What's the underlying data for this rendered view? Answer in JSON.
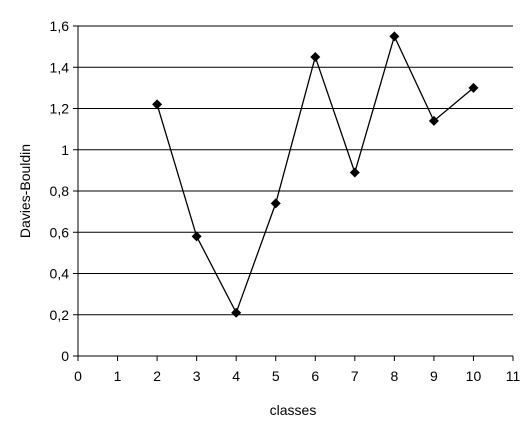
{
  "chart_data": {
    "type": "line",
    "xlabel": "classes",
    "ylabel": "Davies-Bouldin",
    "xlim": [
      0,
      11
    ],
    "ylim": [
      0,
      1.6
    ],
    "x_ticks": [
      "0",
      "1",
      "2",
      "3",
      "4",
      "5",
      "6",
      "7",
      "8",
      "9",
      "10",
      "11"
    ],
    "y_ticks": [
      "0",
      "0,2",
      "0,4",
      "0,6",
      "0,8",
      "1",
      "1,2",
      "1,4",
      "1,6"
    ],
    "grid": "horizontal",
    "legend": "none",
    "series": [
      {
        "color": "#000000",
        "marker": "diamond",
        "x": [
          2,
          3,
          4,
          5,
          6,
          7,
          8,
          9,
          10
        ],
        "y": [
          1.22,
          0.58,
          0.21,
          0.74,
          1.45,
          0.89,
          1.55,
          1.14,
          1.3
        ]
      }
    ]
  }
}
